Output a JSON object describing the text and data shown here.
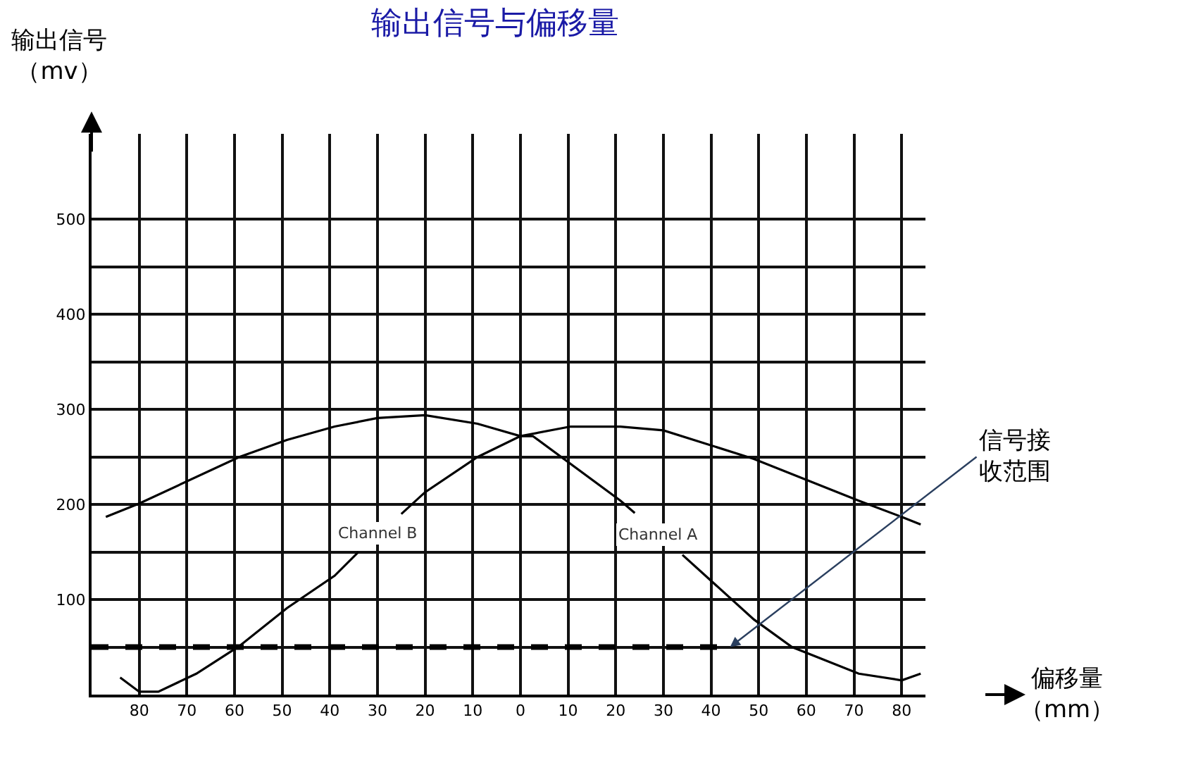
{
  "chart_data": {
    "type": "line",
    "title": "输出信号与偏移量",
    "ylabel": "输出信号（mv）",
    "xlabel": "偏移量（mm）",
    "xlim": [
      -90,
      85
    ],
    "ylim": [
      0,
      590
    ],
    "xticks": [
      {
        "value": -80,
        "label": "80"
      },
      {
        "value": -70,
        "label": "70"
      },
      {
        "value": -60,
        "label": "60"
      },
      {
        "value": -50,
        "label": "50"
      },
      {
        "value": -40,
        "label": "40"
      },
      {
        "value": -30,
        "label": "30"
      },
      {
        "value": -20,
        "label": "20"
      },
      {
        "value": -10,
        "label": "10"
      },
      0,
      10,
      20,
      30,
      40,
      50,
      60,
      70,
      80
    ],
    "yticks": [
      {
        "value": 50,
        "label": null
      },
      100,
      {
        "value": 150,
        "label": null
      },
      200,
      {
        "value": 250,
        "label": null
      },
      300,
      {
        "value": 350,
        "label": null
      },
      400,
      {
        "value": 450,
        "label": null
      },
      500
    ],
    "grid": true,
    "legend": false,
    "marker": "none",
    "line_style": "solid",
    "series": [
      {
        "name": "Channel A",
        "color": "#000000",
        "x": [
          -87,
          -80,
          -59,
          -49,
          -39,
          -30,
          -20,
          -9,
          0,
          2.6,
          21,
          24,
          29,
          34,
          49,
          57,
          71,
          80,
          84
        ],
        "values": [
          187,
          201,
          250,
          268,
          282,
          291,
          294,
          285,
          272,
          272,
          204,
          191,
          null,
          147,
          79,
          50,
          22,
          15,
          22
        ]
      },
      {
        "name": "Channel B",
        "color": "#000000",
        "x": [
          -84,
          -80,
          -76,
          -68,
          -59,
          -49,
          -39,
          -34,
          -30,
          -25,
          -20,
          -9,
          0,
          10.5,
          21,
          30,
          49,
          71,
          80,
          84
        ],
        "values": [
          18,
          3,
          3,
          22,
          51,
          91,
          125,
          150,
          null,
          190,
          213,
          250,
          272,
          282,
          282,
          278,
          248,
          204,
          187,
          179
        ]
      },
      {
        "color": "#000000",
        "line_style": "dashed",
        "x": [
          -90,
          44
        ],
        "values": [
          50,
          50
        ]
      }
    ],
    "annotations": [
      {
        "text": "信号接收范围",
        "x": 44,
        "y": 50
      }
    ]
  }
}
